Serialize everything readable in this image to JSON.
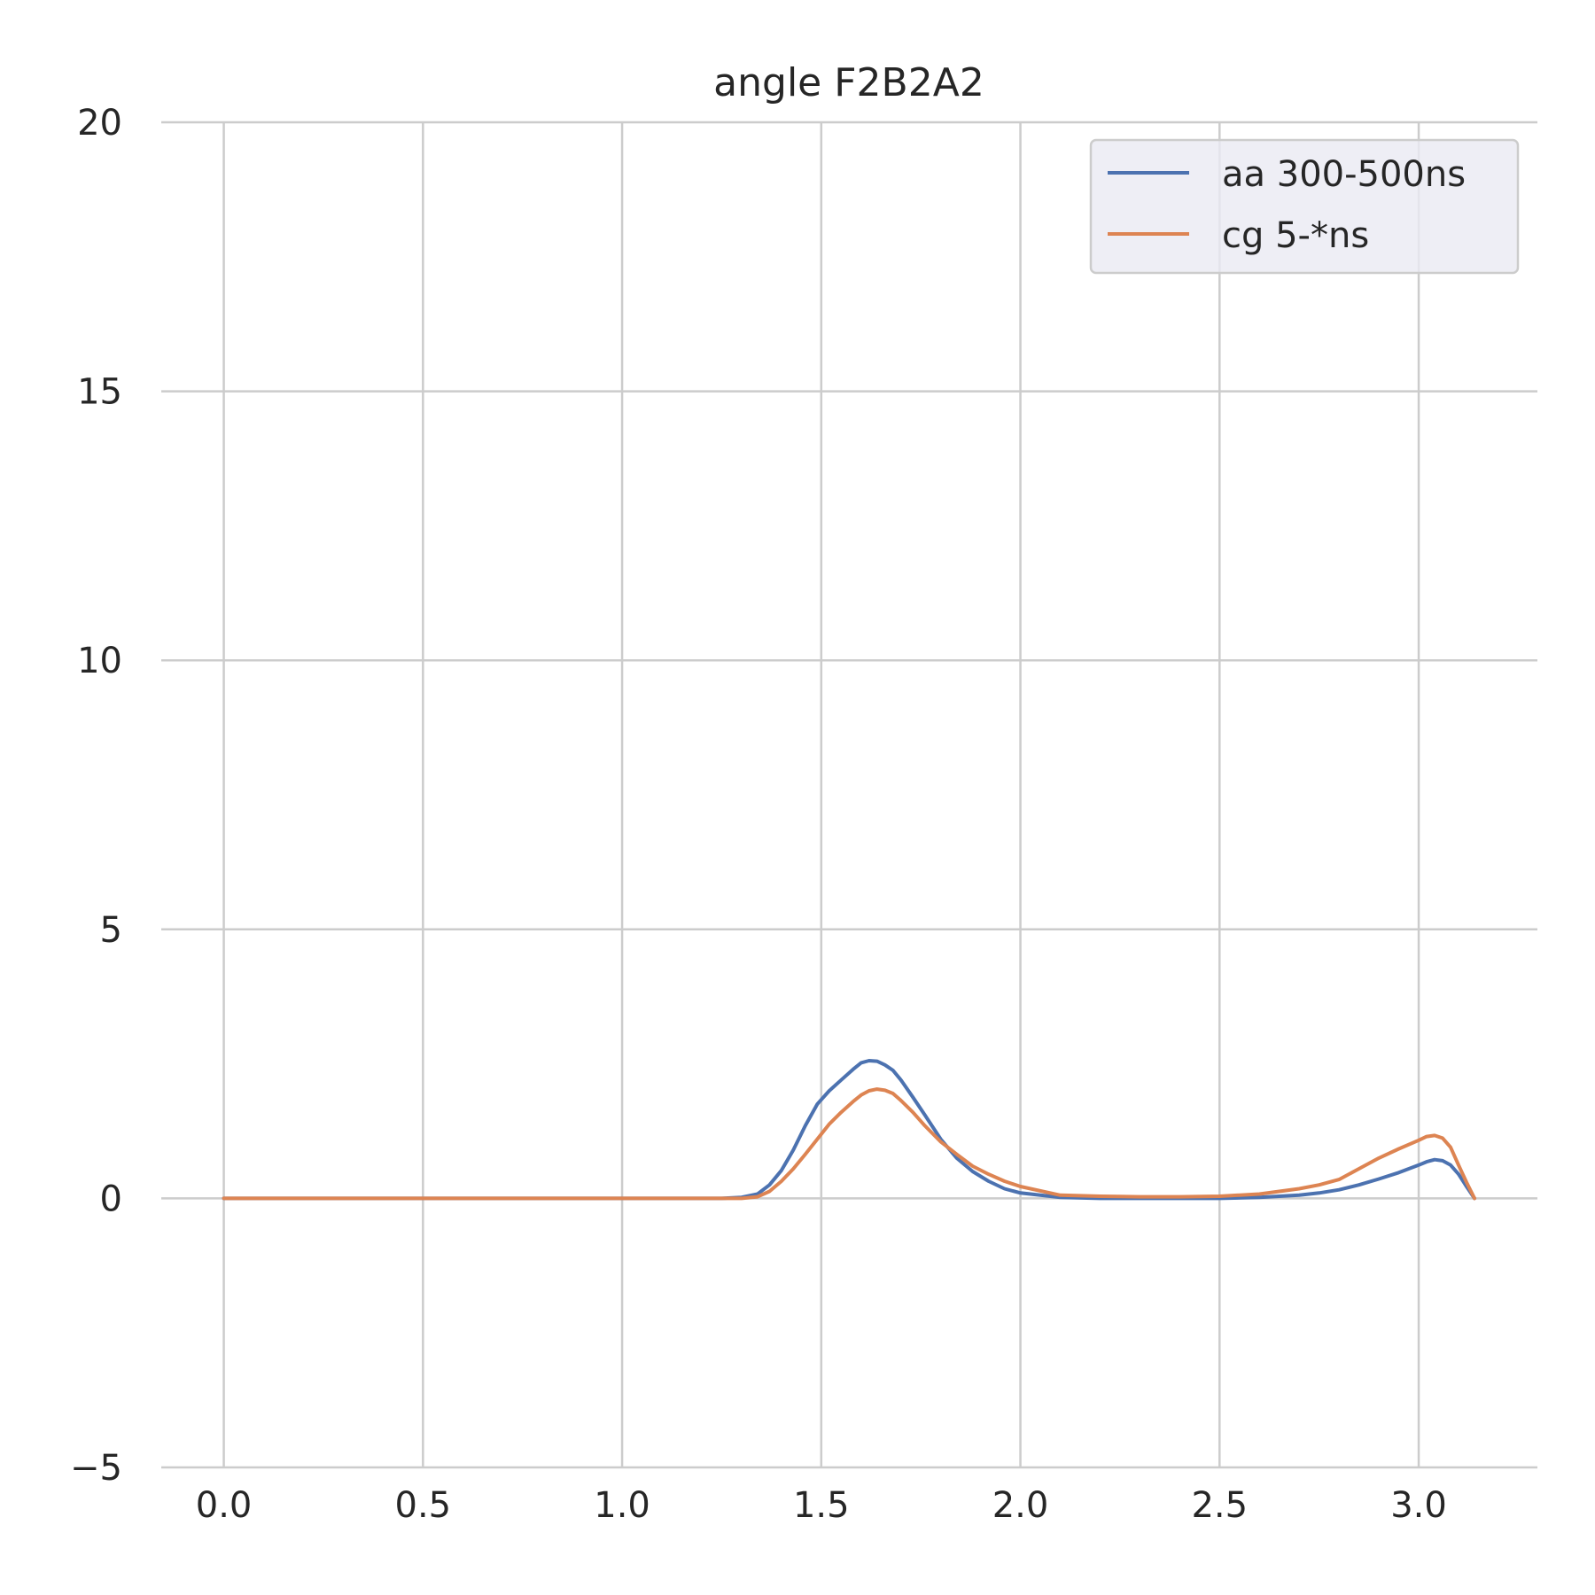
{
  "chart_data": {
    "type": "line",
    "title": "angle F2B2A2",
    "xlabel": "",
    "ylabel": "",
    "xlim": [
      -0.157,
      3.298
    ],
    "ylim": [
      -5,
      20
    ],
    "xticks": [
      "0.0",
      "0.5",
      "1.0",
      "1.5",
      "2.0",
      "2.5",
      "3.0"
    ],
    "xtick_values": [
      0.0,
      0.5,
      1.0,
      1.5,
      2.0,
      2.5,
      3.0
    ],
    "yticks": [
      "−5",
      "0",
      "5",
      "10",
      "15",
      "20"
    ],
    "ytick_values": [
      -5,
      0,
      5,
      10,
      15,
      20
    ],
    "grid": true,
    "legend_position": "top-right",
    "series": [
      {
        "name": "aa 300-500ns",
        "color": "#4c72b0",
        "x": [
          0.0,
          0.5,
          1.0,
          1.25,
          1.3,
          1.34,
          1.37,
          1.4,
          1.43,
          1.46,
          1.49,
          1.52,
          1.55,
          1.58,
          1.6,
          1.62,
          1.64,
          1.66,
          1.68,
          1.7,
          1.73,
          1.76,
          1.8,
          1.84,
          1.88,
          1.92,
          1.96,
          2.0,
          2.1,
          2.2,
          2.3,
          2.4,
          2.5,
          2.6,
          2.7,
          2.75,
          2.8,
          2.85,
          2.9,
          2.95,
          3.0,
          3.02,
          3.04,
          3.06,
          3.08,
          3.1,
          3.12,
          3.14
        ],
        "y": [
          0.0,
          0.0,
          0.0,
          0.0,
          0.02,
          0.08,
          0.25,
          0.52,
          0.9,
          1.35,
          1.75,
          2.0,
          2.2,
          2.4,
          2.52,
          2.56,
          2.55,
          2.48,
          2.38,
          2.2,
          1.88,
          1.55,
          1.1,
          0.75,
          0.5,
          0.32,
          0.18,
          0.1,
          0.02,
          0.0,
          0.0,
          0.0,
          0.0,
          0.02,
          0.06,
          0.1,
          0.16,
          0.25,
          0.36,
          0.48,
          0.62,
          0.68,
          0.72,
          0.7,
          0.62,
          0.45,
          0.22,
          0.0
        ]
      },
      {
        "name": "cg 5-*ns",
        "color": "#dd8452",
        "x": [
          0.0,
          0.5,
          1.0,
          1.25,
          1.3,
          1.34,
          1.37,
          1.4,
          1.43,
          1.46,
          1.49,
          1.52,
          1.55,
          1.58,
          1.6,
          1.62,
          1.64,
          1.66,
          1.68,
          1.7,
          1.73,
          1.76,
          1.8,
          1.84,
          1.88,
          1.92,
          1.96,
          2.0,
          2.1,
          2.2,
          2.3,
          2.4,
          2.5,
          2.6,
          2.7,
          2.75,
          2.8,
          2.85,
          2.9,
          2.95,
          3.0,
          3.02,
          3.04,
          3.06,
          3.08,
          3.1,
          3.12,
          3.14
        ],
        "y": [
          0.0,
          0.0,
          0.0,
          0.0,
          0.0,
          0.03,
          0.13,
          0.32,
          0.55,
          0.82,
          1.1,
          1.38,
          1.6,
          1.8,
          1.92,
          2.0,
          2.03,
          2.01,
          1.95,
          1.82,
          1.6,
          1.35,
          1.05,
          0.82,
          0.6,
          0.45,
          0.32,
          0.22,
          0.06,
          0.04,
          0.03,
          0.03,
          0.04,
          0.08,
          0.18,
          0.25,
          0.35,
          0.55,
          0.75,
          0.92,
          1.08,
          1.15,
          1.17,
          1.12,
          0.95,
          0.62,
          0.3,
          0.0
        ]
      }
    ]
  }
}
